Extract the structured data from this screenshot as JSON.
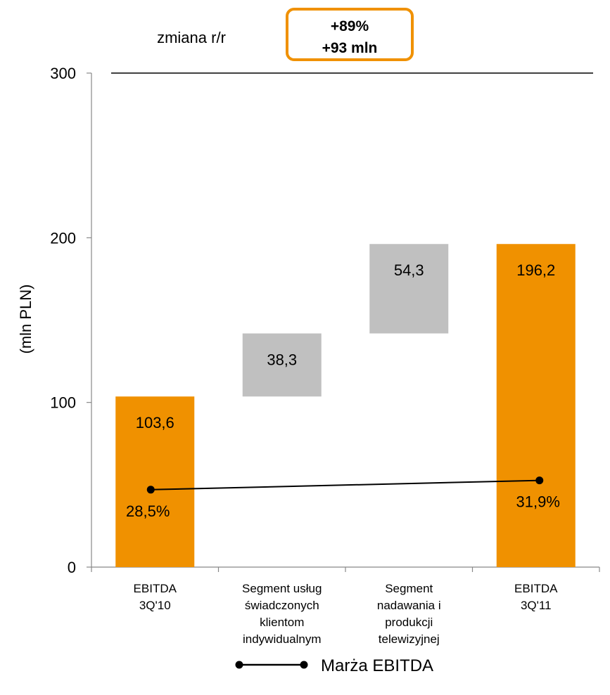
{
  "header": {
    "change_label": "zmiana r/r",
    "change_pct": "+89%",
    "change_abs": "+93 mln"
  },
  "chart_data": {
    "type": "bar",
    "subtype": "waterfall",
    "ylabel": "(mln PLN)",
    "ylim": [
      0,
      300
    ],
    "yticks": [
      0,
      100,
      200,
      300
    ],
    "categories": [
      [
        "EBITDA",
        "3Q'10"
      ],
      [
        "Segment usług",
        "świadczonych",
        "klientom",
        "indywidualnym"
      ],
      [
        "Segment",
        "nadawania i",
        "produkcji",
        "telewizyjnej"
      ],
      [
        "EBITDA",
        "3Q'11"
      ]
    ],
    "bars": [
      {
        "base": 0,
        "value": 103.6,
        "label": "103,6",
        "kind": "total"
      },
      {
        "base": 103.6,
        "value": 38.3,
        "label": "38,3",
        "kind": "delta"
      },
      {
        "base": 141.9,
        "value": 54.3,
        "label": "54,3",
        "kind": "delta"
      },
      {
        "base": 0,
        "value": 196.2,
        "label": "196,2",
        "kind": "total"
      }
    ],
    "margin_series": {
      "name": "Marża EBITDA",
      "points": [
        {
          "category_index": 0,
          "value_pct": 28.5,
          "label": "28,5%"
        },
        {
          "category_index": 3,
          "value_pct": 31.9,
          "label": "31,9%"
        }
      ]
    },
    "colors": {
      "total": "#F09100",
      "delta": "#C0C0C0",
      "line": "#000000",
      "box_border": "#F09100"
    },
    "legend_position": "bottom"
  }
}
